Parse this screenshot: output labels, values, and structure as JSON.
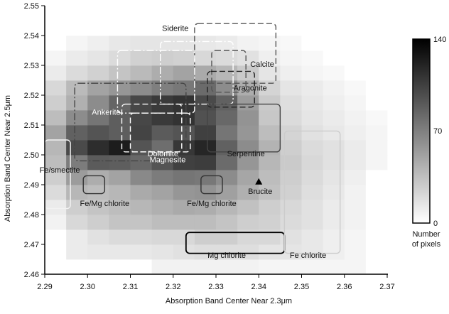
{
  "chart_data": {
    "type": "heatmap",
    "title": "",
    "xlabel": "Absorption Band Center Near 2.3μm",
    "ylabel": "Absorption Band Center Near 2.5μm",
    "xlim": [
      2.29,
      2.37
    ],
    "ylim": [
      2.46,
      2.55
    ],
    "x_ticks": [
      "2.29",
      "2.30",
      "2.31",
      "2.32",
      "2.33",
      "2.34",
      "2.35",
      "2.36",
      "2.37"
    ],
    "y_ticks": [
      "2.46",
      "2.47",
      "2.48",
      "2.49",
      "2.50",
      "2.51",
      "2.52",
      "2.53",
      "2.54",
      "2.55"
    ],
    "cell_size": 0.005,
    "grid_x_start": 2.29,
    "grid_y_start": 2.46,
    "values": [
      [
        0,
        0,
        0,
        0,
        0,
        8,
        8,
        8,
        8,
        8,
        6,
        6,
        6,
        6,
        6,
        0
      ],
      [
        0,
        12,
        14,
        14,
        14,
        16,
        18,
        20,
        20,
        20,
        16,
        16,
        14,
        10,
        6,
        0
      ],
      [
        0,
        12,
        18,
        22,
        22,
        24,
        24,
        30,
        30,
        24,
        24,
        18,
        14,
        10,
        6,
        0
      ],
      [
        8,
        24,
        30,
        36,
        36,
        40,
        40,
        40,
        36,
        30,
        28,
        22,
        18,
        12,
        8,
        0
      ],
      [
        12,
        30,
        36,
        40,
        44,
        48,
        52,
        50,
        44,
        38,
        30,
        24,
        18,
        12,
        8,
        0
      ],
      [
        22,
        44,
        40,
        44,
        52,
        56,
        64,
        66,
        58,
        48,
        38,
        28,
        20,
        14,
        8,
        0
      ],
      [
        30,
        60,
        50,
        56,
        72,
        80,
        84,
        82,
        70,
        54,
        40,
        30,
        22,
        16,
        10,
        0
      ],
      [
        40,
        80,
        100,
        98,
        92,
        104,
        116,
        118,
        90,
        64,
        44,
        32,
        24,
        18,
        12,
        6
      ],
      [
        44,
        110,
        128,
        138,
        104,
        88,
        122,
        132,
        96,
        70,
        46,
        30,
        22,
        18,
        12,
        6
      ],
      [
        56,
        96,
        104,
        98,
        114,
        100,
        104,
        116,
        84,
        64,
        40,
        26,
        18,
        14,
        10,
        6
      ],
      [
        40,
        70,
        84,
        98,
        112,
        120,
        124,
        106,
        92,
        66,
        34,
        22,
        16,
        12,
        8,
        4
      ],
      [
        30,
        48,
        70,
        94,
        112,
        120,
        124,
        110,
        96,
        60,
        32,
        20,
        14,
        10,
        6,
        0
      ],
      [
        24,
        42,
        56,
        64,
        70,
        78,
        82,
        90,
        70,
        50,
        26,
        16,
        12,
        8,
        4,
        0
      ],
      [
        12,
        22,
        28,
        36,
        42,
        50,
        56,
        52,
        44,
        32,
        16,
        10,
        6,
        4,
        0,
        0
      ],
      [
        6,
        12,
        16,
        22,
        28,
        30,
        28,
        24,
        22,
        18,
        10,
        6,
        4,
        0,
        0,
        0
      ],
      [
        0,
        6,
        10,
        14,
        16,
        16,
        16,
        14,
        12,
        8,
        6,
        4,
        0,
        0,
        0,
        0
      ],
      [
        0,
        0,
        0,
        0,
        0,
        0,
        0,
        0,
        0,
        0,
        0,
        0,
        0,
        0,
        0,
        0
      ],
      [
        0,
        0,
        0,
        0,
        0,
        0,
        0,
        0,
        0,
        0,
        0,
        0,
        0,
        0,
        0,
        0
      ]
    ],
    "colorbar": {
      "min": 0,
      "max": 140,
      "ticks": [
        "140",
        "70",
        "0"
      ],
      "label_line1": "Number",
      "label_line2": "of pixels"
    },
    "regions": [
      {
        "label": "Siderite",
        "x": [
          2.317,
          2.334
        ],
        "y": [
          2.517,
          2.538
        ],
        "stroke": "#ffffff",
        "dash": "dashdot"
      },
      {
        "label": "",
        "x": [
          2.325,
          2.344
        ],
        "y": [
          2.524,
          2.544
        ],
        "stroke": "#555555",
        "dash": "dashed"
      },
      {
        "label": "Calcite",
        "x": [
          2.329,
          2.337
        ],
        "y": [
          2.521,
          2.535
        ],
        "stroke": "#555555",
        "dash": "dashed"
      },
      {
        "label": "Aragonite",
        "x": [
          2.328,
          2.339
        ],
        "y": [
          2.516,
          2.528
        ],
        "stroke": "#222222",
        "dash": "dashed"
      },
      {
        "label": "",
        "x": [
          2.307,
          2.325
        ],
        "y": [
          2.514,
          2.535
        ],
        "stroke": "#ffffff",
        "dash": "dashdot"
      },
      {
        "label": "Ankerite",
        "x": [
          2.297,
          2.323
        ],
        "y": [
          2.498,
          2.524
        ],
        "stroke": "#444444",
        "dash": "dashdot"
      },
      {
        "label": "Dolomite",
        "x": [
          2.308,
          2.322
        ],
        "y": [
          2.501,
          2.517
        ],
        "stroke": "#ffffff",
        "dash": "dashed"
      },
      {
        "label": "Magnesite",
        "x": [
          2.31,
          2.324
        ],
        "y": [
          2.501,
          2.514
        ],
        "stroke": "#ffffff",
        "dash": "dashed"
      },
      {
        "label": "Serpentine",
        "x": [
          2.328,
          2.345
        ],
        "y": [
          2.501,
          2.517
        ],
        "stroke": "#444444",
        "dash": "solid"
      },
      {
        "label": "Fe/smectite",
        "x": [
          2.29,
          2.296
        ],
        "y": [
          2.482,
          2.505
        ],
        "stroke": "#f2f2f2",
        "dash": "solid"
      },
      {
        "label": "Fe/Mg chlorite",
        "x": [
          2.299,
          2.304
        ],
        "y": [
          2.487,
          2.493
        ],
        "stroke": "#333333",
        "dash": "solid"
      },
      {
        "label": "Fe/Mg chlorite",
        "x": [
          2.3265,
          2.3315
        ],
        "y": [
          2.487,
          2.493
        ],
        "stroke": "#333333",
        "dash": "solid"
      },
      {
        "label": "Mg chlorite",
        "x": [
          2.323,
          2.346
        ],
        "y": [
          2.467,
          2.474
        ],
        "stroke": "#000000",
        "dash": "solid"
      },
      {
        "label": "Fe chlorite",
        "x": [
          2.346,
          2.359
        ],
        "y": [
          2.467,
          2.508
        ],
        "stroke": "#cccccc",
        "dash": "solid"
      }
    ],
    "point_markers": [
      {
        "label": "Brucite",
        "x": 2.34,
        "y": 2.491,
        "marker": "triangle"
      }
    ]
  }
}
